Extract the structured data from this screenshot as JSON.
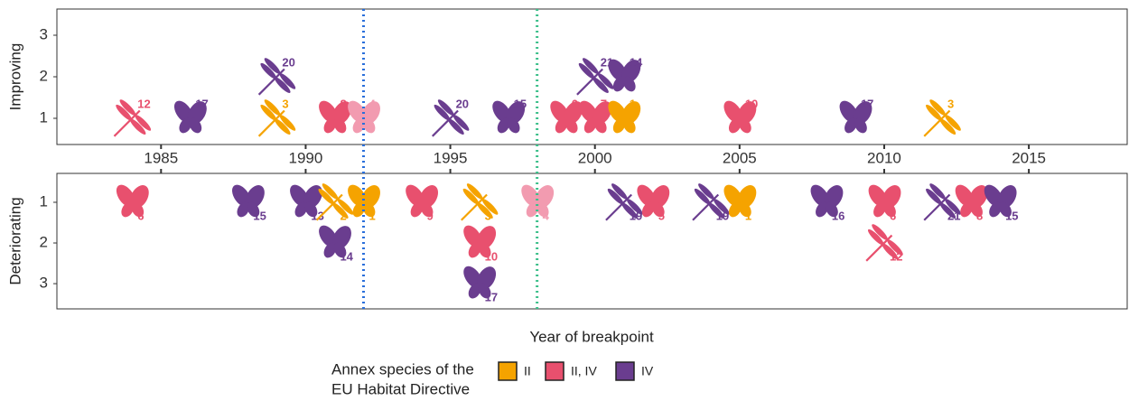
{
  "chart_data": {
    "type": "scatter",
    "x_title": "Year of breakpoint",
    "xlim": [
      1981.4,
      2018.4
    ],
    "xticks": [
      1985,
      1990,
      1995,
      2000,
      2005,
      2010,
      2015
    ],
    "vlines": [
      {
        "x": 1992,
        "color": "#2a6fdb"
      },
      {
        "x": 1998,
        "color": "#3cbf8a"
      }
    ],
    "series": [
      {
        "name": "II",
        "color": "#f5a300"
      },
      {
        "name": "II, IV",
        "color": "#e8506e"
      },
      {
        "name": "IV",
        "color": "#6a3d8f"
      }
    ],
    "legend_title": [
      "Annex species of the",
      "EU Habitat Directive"
    ],
    "panels": [
      {
        "label": "Improving",
        "ylim": [
          0.37,
          3.63
        ],
        "yticks": [
          1,
          2,
          3
        ],
        "y_reversed": false,
        "points": [
          {
            "x": 1984,
            "y": 1,
            "id": 12,
            "series": 1,
            "shape": "dragonfly"
          },
          {
            "x": 1986,
            "y": 1,
            "id": 17,
            "series": 2,
            "shape": "butterfly"
          },
          {
            "x": 1989,
            "y": 2,
            "id": 20,
            "series": 2,
            "shape": "dragonfly"
          },
          {
            "x": 1989,
            "y": 1,
            "id": 3,
            "series": 0,
            "shape": "dragonfly"
          },
          {
            "x": 1991,
            "y": 1,
            "id": 8,
            "series": 1,
            "shape": "butterfly"
          },
          {
            "x": 1992,
            "y": 1,
            "id": 4,
            "series": 1,
            "shape": "butterfly",
            "color": "#f29bb0"
          },
          {
            "x": 1995,
            "y": 1,
            "id": 20,
            "series": 2,
            "shape": "dragonfly"
          },
          {
            "x": 1997,
            "y": 1,
            "id": 15,
            "series": 2,
            "shape": "butterfly"
          },
          {
            "x": 1999,
            "y": 1,
            "id": 6,
            "series": 1,
            "shape": "butterfly"
          },
          {
            "x": 2000,
            "y": 1,
            "id": 7,
            "series": 1,
            "shape": "butterfly"
          },
          {
            "x": 2001,
            "y": 1,
            "id": 1,
            "series": 0,
            "shape": "butterfly"
          },
          {
            "x": 2000,
            "y": 2,
            "id": 21,
            "series": 2,
            "shape": "dragonfly"
          },
          {
            "x": 2001,
            "y": 2,
            "id": 14,
            "series": 2,
            "shape": "butterfly"
          },
          {
            "x": 2005,
            "y": 1,
            "id": 10,
            "series": 1,
            "shape": "butterfly"
          },
          {
            "x": 2009,
            "y": 1,
            "id": 17,
            "series": 2,
            "shape": "butterfly"
          },
          {
            "x": 2012,
            "y": 1,
            "id": 3,
            "series": 0,
            "shape": "dragonfly"
          }
        ]
      },
      {
        "label": "Deteriorating",
        "ylim": [
          0.29,
          3.62
        ],
        "yticks": [
          1,
          2,
          3
        ],
        "y_reversed": true,
        "points": [
          {
            "x": 1984,
            "y": 1,
            "id": 6,
            "series": 1,
            "shape": "butterfly"
          },
          {
            "x": 1988,
            "y": 1,
            "id": 15,
            "series": 2,
            "shape": "butterfly"
          },
          {
            "x": 1990,
            "y": 1,
            "id": 13,
            "series": 2,
            "shape": "butterfly"
          },
          {
            "x": 1991,
            "y": 1,
            "id": 2,
            "series": 0,
            "shape": "dragonfly"
          },
          {
            "x": 1992,
            "y": 1,
            "id": 1,
            "series": 0,
            "shape": "butterfly"
          },
          {
            "x": 1991,
            "y": 2,
            "id": 14,
            "series": 2,
            "shape": "butterfly"
          },
          {
            "x": 1994,
            "y": 1,
            "id": 9,
            "series": 1,
            "shape": "butterfly"
          },
          {
            "x": 1996,
            "y": 1,
            "id": 3,
            "series": 0,
            "shape": "dragonfly"
          },
          {
            "x": 1996,
            "y": 2,
            "id": 10,
            "series": 1,
            "shape": "butterfly"
          },
          {
            "x": 1996,
            "y": 3,
            "id": 17,
            "series": 2,
            "shape": "butterfly"
          },
          {
            "x": 1998,
            "y": 1,
            "id": 4,
            "series": 1,
            "shape": "butterfly",
            "color": "#f29bb0"
          },
          {
            "x": 2001,
            "y": 1,
            "id": 19,
            "series": 2,
            "shape": "dragonfly"
          },
          {
            "x": 2002,
            "y": 1,
            "id": 5,
            "series": 1,
            "shape": "butterfly"
          },
          {
            "x": 2004,
            "y": 1,
            "id": 19,
            "series": 2,
            "shape": "dragonfly"
          },
          {
            "x": 2005,
            "y": 1,
            "id": 1,
            "series": 0,
            "shape": "butterfly"
          },
          {
            "x": 2008,
            "y": 1,
            "id": 16,
            "series": 2,
            "shape": "butterfly"
          },
          {
            "x": 2010,
            "y": 1,
            "id": 6,
            "series": 1,
            "shape": "butterfly"
          },
          {
            "x": 2010,
            "y": 2,
            "id": 12,
            "series": 1,
            "shape": "dragonfly"
          },
          {
            "x": 2012,
            "y": 1,
            "id": 21,
            "series": 2,
            "shape": "dragonfly"
          },
          {
            "x": 2013,
            "y": 1,
            "id": 8,
            "series": 1,
            "shape": "butterfly"
          },
          {
            "x": 2014,
            "y": 1,
            "id": 15,
            "series": 2,
            "shape": "butterfly"
          }
        ]
      }
    ]
  }
}
